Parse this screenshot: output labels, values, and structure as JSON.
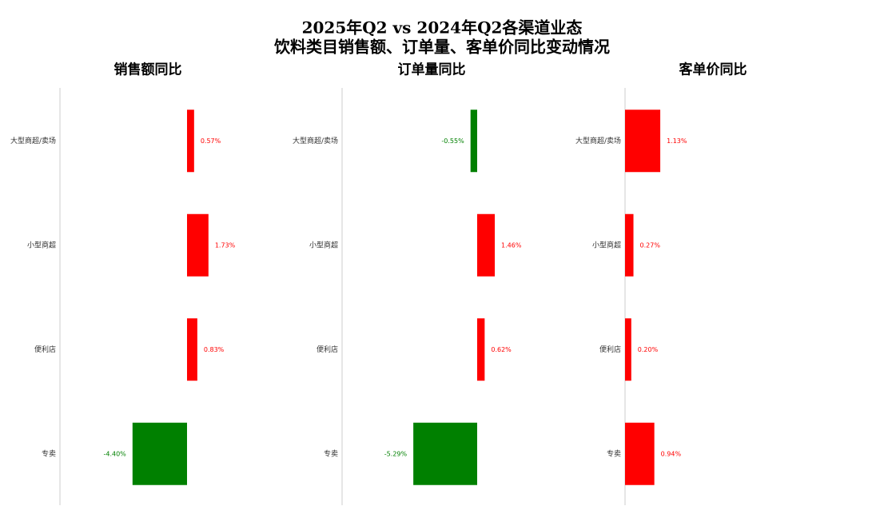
{
  "title": "2025年Q2 vs 2024年Q2各渠道业态",
  "subtitle": "饮料类目销售额、订单量、客单价同比变动情况",
  "chart_data": [
    {
      "type": "bar",
      "orientation": "horizontal",
      "title": "销售额同比",
      "categories": [
        "大型商超/卖场",
        "小型商超",
        "便利店",
        "专卖"
      ],
      "values": [
        0.57,
        1.73,
        0.83,
        -4.4
      ],
      "value_labels": [
        "0.57%",
        "1.73%",
        "0.83%",
        "-4.40%"
      ],
      "positive_color": "#ff0000",
      "negative_color": "#008000"
    },
    {
      "type": "bar",
      "orientation": "horizontal",
      "title": "订单量同比",
      "categories": [
        "大型商超/卖场",
        "小型商超",
        "便利店",
        "专卖"
      ],
      "values": [
        -0.55,
        1.46,
        0.62,
        -5.29
      ],
      "value_labels": [
        "-0.55%",
        "1.46%",
        "0.62%",
        "-5.29%"
      ],
      "positive_color": "#ff0000",
      "negative_color": "#008000"
    },
    {
      "type": "bar",
      "orientation": "horizontal",
      "title": "客单价同比",
      "categories": [
        "大型商超/卖场",
        "小型商超",
        "便利店",
        "专卖"
      ],
      "values": [
        1.13,
        0.27,
        0.2,
        0.94
      ],
      "value_labels": [
        "1.13%",
        "0.27%",
        "0.20%",
        "0.94%"
      ],
      "positive_color": "#ff0000",
      "negative_color": "#008000"
    }
  ]
}
